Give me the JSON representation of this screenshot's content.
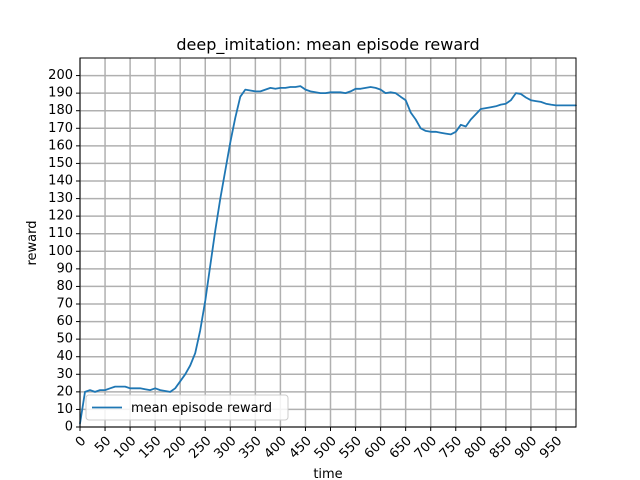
{
  "chart_data": {
    "type": "line",
    "title": "deep_imitation: mean episode reward",
    "xlabel": "time",
    "ylabel": "reward",
    "xlim": [
      0,
      990
    ],
    "ylim": [
      0,
      210
    ],
    "grid": true,
    "legend_position": "lower-left",
    "x_ticks": [
      0,
      50,
      100,
      150,
      200,
      250,
      300,
      350,
      400,
      450,
      500,
      550,
      600,
      650,
      700,
      750,
      800,
      850,
      900,
      950
    ],
    "y_ticks": [
      0,
      10,
      20,
      30,
      40,
      50,
      60,
      70,
      80,
      90,
      100,
      110,
      120,
      130,
      140,
      150,
      160,
      170,
      180,
      190,
      200
    ],
    "colors": {
      "line": "#1f77b4",
      "grid": "#b0b0b0"
    },
    "series": [
      {
        "name": "mean episode reward",
        "x": [
          0,
          10,
          20,
          30,
          40,
          50,
          60,
          70,
          80,
          90,
          100,
          110,
          120,
          130,
          140,
          150,
          160,
          170,
          180,
          190,
          200,
          210,
          220,
          230,
          240,
          250,
          260,
          270,
          280,
          290,
          300,
          310,
          320,
          330,
          340,
          350,
          360,
          370,
          380,
          390,
          400,
          410,
          420,
          430,
          440,
          450,
          460,
          470,
          480,
          490,
          500,
          510,
          520,
          530,
          540,
          550,
          560,
          570,
          580,
          590,
          600,
          610,
          620,
          630,
          640,
          650,
          660,
          670,
          680,
          690,
          700,
          710,
          720,
          730,
          740,
          750,
          760,
          770,
          780,
          790,
          800,
          810,
          820,
          830,
          840,
          850,
          860,
          870,
          880,
          890,
          900,
          910,
          920,
          930,
          940,
          950,
          960,
          970,
          980,
          990
        ],
        "values": [
          2,
          20,
          21,
          20,
          21,
          21,
          22,
          23,
          23,
          23,
          22,
          22,
          22,
          21.5,
          21,
          22,
          21,
          20.5,
          20,
          22,
          26,
          30,
          35,
          42,
          55,
          72,
          92,
          112,
          130,
          146,
          162,
          176,
          188,
          192,
          191.5,
          191,
          191,
          192,
          193,
          192.5,
          193,
          193,
          193.5,
          193.5,
          194,
          192,
          191,
          190.5,
          190,
          190,
          190.5,
          190.5,
          190.5,
          190,
          191,
          192.5,
          192.5,
          193,
          193.5,
          193,
          192,
          190,
          190.5,
          190,
          188,
          186,
          179,
          175,
          170,
          168.5,
          168,
          168,
          167.5,
          167,
          166.5,
          168,
          172,
          171,
          175,
          178,
          181,
          181.5,
          182,
          182.5,
          183.5,
          184,
          186,
          190,
          189.5,
          187.5,
          186,
          185.5,
          185,
          184,
          183.5,
          183,
          183,
          183,
          183,
          183
        ]
      }
    ]
  }
}
